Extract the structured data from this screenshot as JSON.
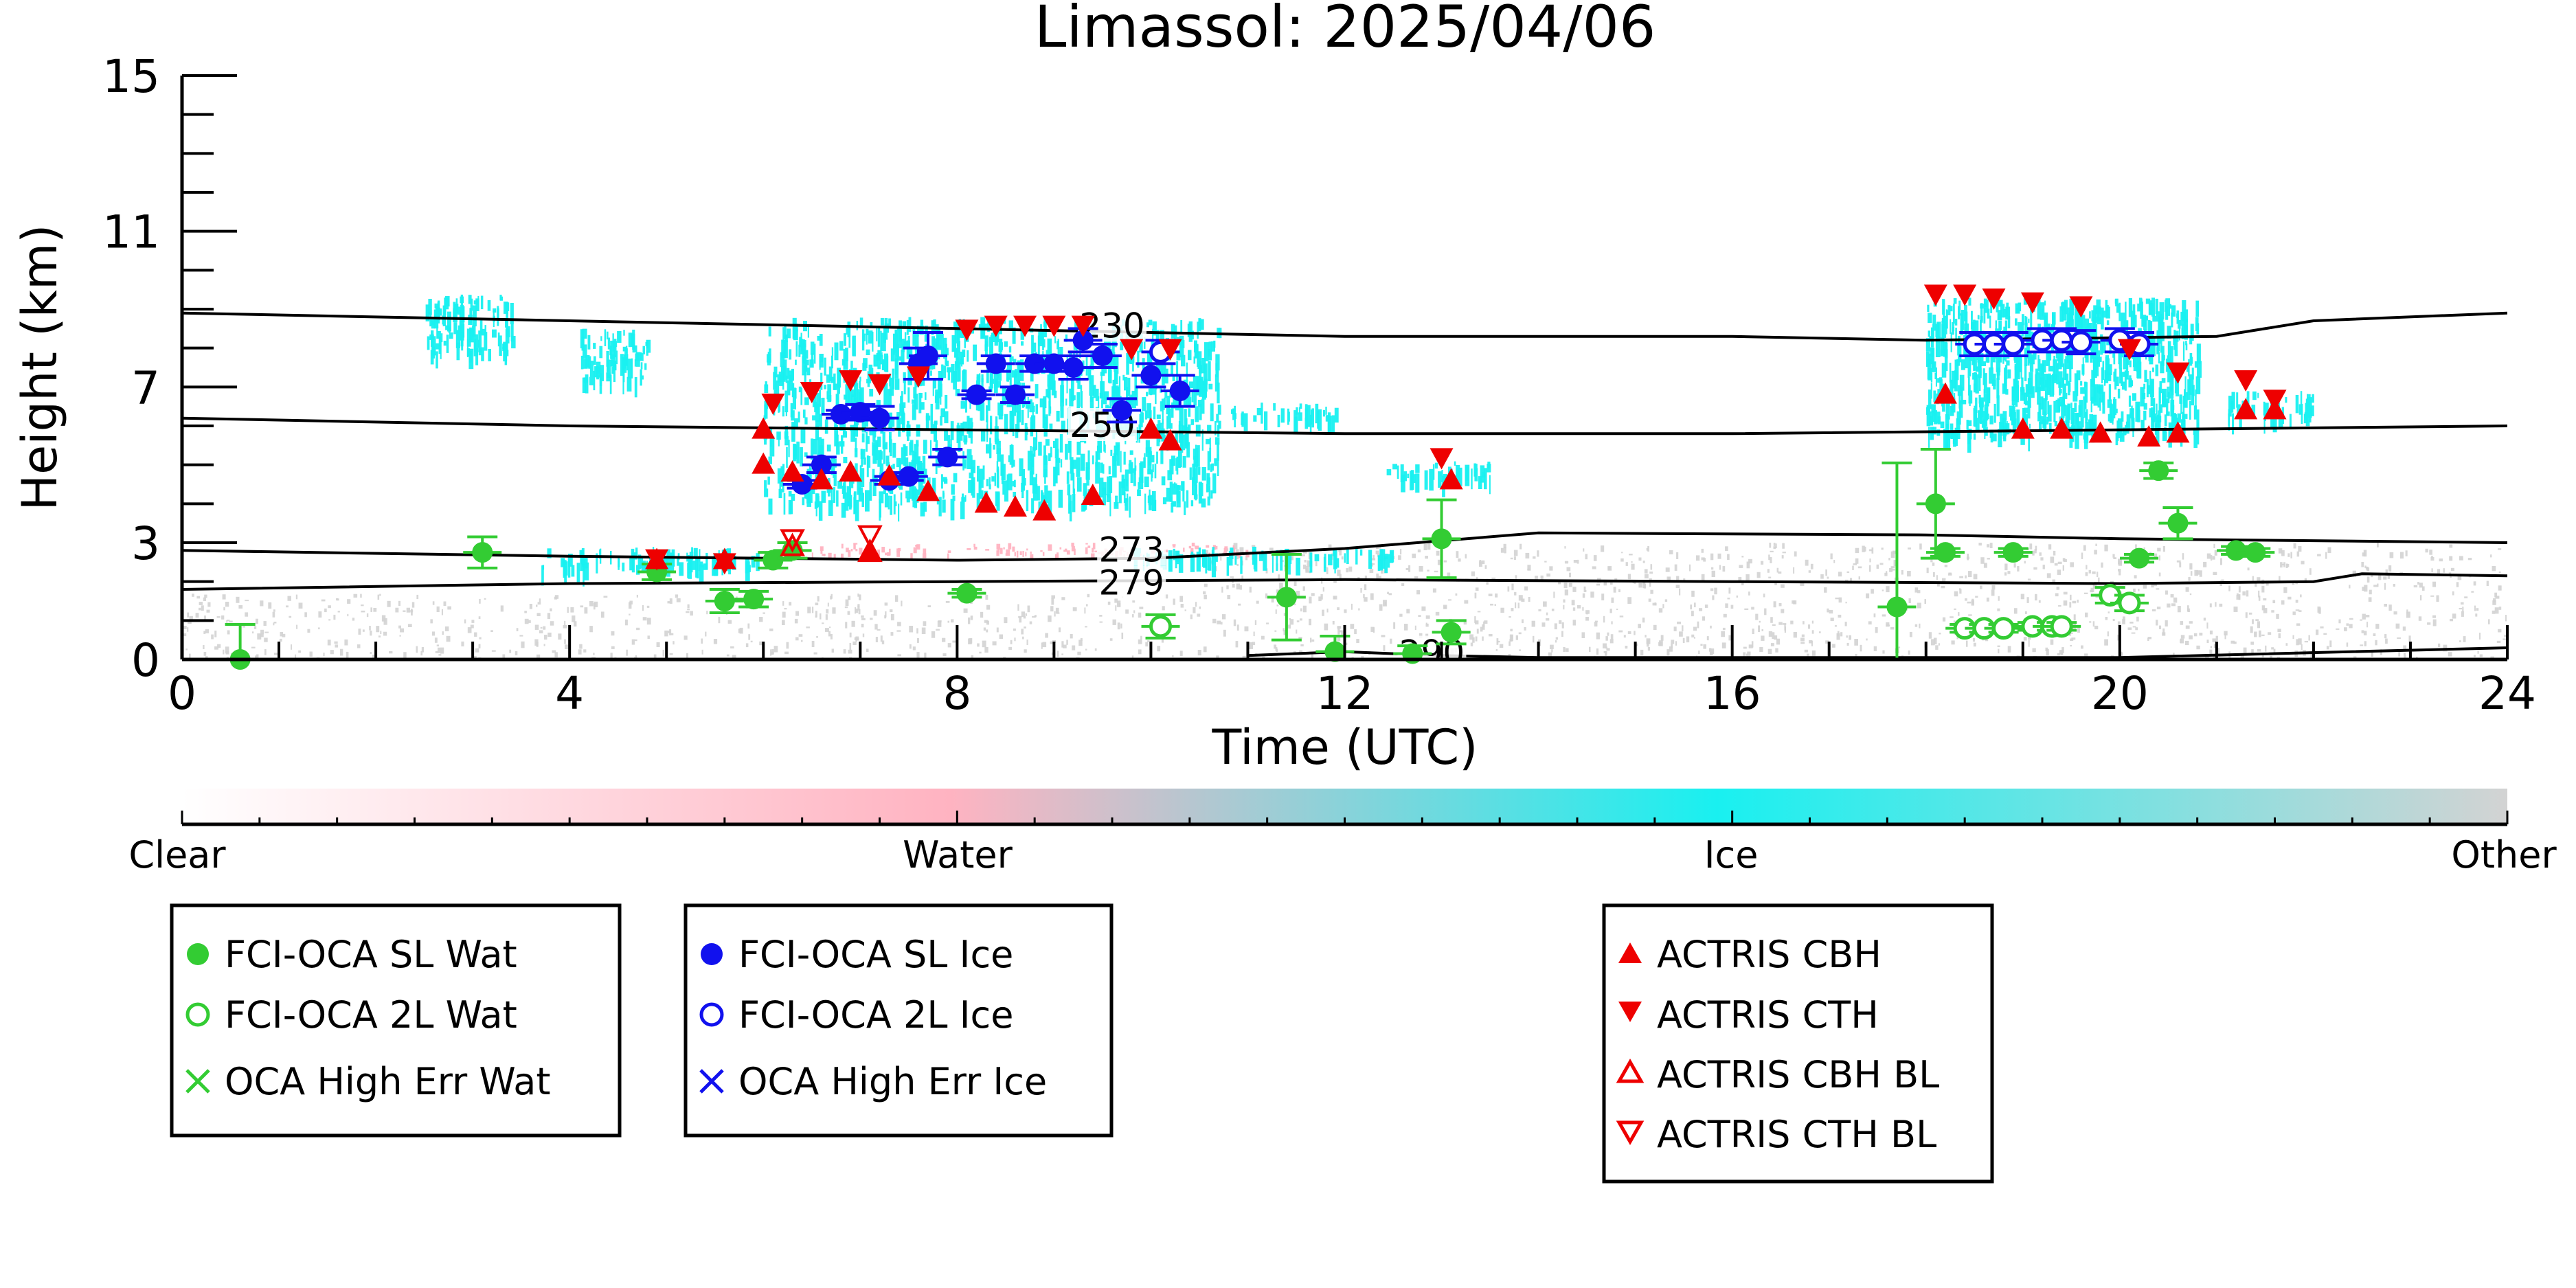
{
  "chart_data": {
    "type": "scatter",
    "title": "Limassol: 2025/04/06",
    "xlabel": "Time (UTC)",
    "ylabel": "Height (km)",
    "xlim": [
      0,
      24
    ],
    "ylim": [
      0,
      15
    ],
    "x_ticks": [
      0,
      4,
      8,
      12,
      16,
      20,
      24
    ],
    "y_ticks": [
      0,
      3,
      7,
      11,
      15
    ],
    "grid": false,
    "isotherms": [
      {
        "label": "230",
        "label_x": 9.6,
        "label_y": 8.55,
        "points": [
          [
            0,
            8.9
          ],
          [
            4,
            8.7
          ],
          [
            8,
            8.5
          ],
          [
            12,
            8.3
          ],
          [
            16,
            8.3
          ],
          [
            18,
            8.2
          ],
          [
            21,
            8.3
          ],
          [
            22,
            8.7
          ],
          [
            24,
            8.9
          ]
        ]
      },
      {
        "label": "250",
        "label_x": 9.5,
        "label_y": 6.0,
        "points": [
          [
            0,
            6.2
          ],
          [
            4,
            6.0
          ],
          [
            8,
            5.9
          ],
          [
            12,
            5.8
          ],
          [
            16,
            5.8
          ],
          [
            20,
            5.9
          ],
          [
            24,
            6.0
          ]
        ]
      },
      {
        "label": "273",
        "label_x": 9.8,
        "label_y": 2.8,
        "points": [
          [
            0,
            2.8
          ],
          [
            4,
            2.65
          ],
          [
            8,
            2.55
          ],
          [
            10,
            2.6
          ],
          [
            12,
            2.85
          ],
          [
            14,
            3.25
          ],
          [
            18,
            3.2
          ],
          [
            20,
            3.1
          ],
          [
            24,
            3.0
          ]
        ]
      },
      {
        "label": "279",
        "label_x": 9.8,
        "label_y": 1.95,
        "points": [
          [
            0,
            1.8
          ],
          [
            4,
            1.95
          ],
          [
            8,
            2.0
          ],
          [
            12,
            2.05
          ],
          [
            16,
            2.0
          ],
          [
            20,
            1.95
          ],
          [
            22,
            2.0
          ],
          [
            22.5,
            2.2
          ],
          [
            24,
            2.15
          ]
        ]
      },
      {
        "label": "290",
        "label_x": 12.9,
        "label_y": 0.15,
        "points": [
          [
            11,
            0.1
          ],
          [
            12,
            0.2
          ],
          [
            13,
            0.1
          ],
          [
            14,
            0.05
          ],
          [
            20,
            0.05
          ],
          [
            24,
            0.3
          ]
        ]
      }
    ],
    "series": [
      {
        "name": "FCI-OCA SL Wat",
        "marker": "filled-circle",
        "color": "#33cc33",
        "points": [
          [
            0.6,
            0.0,
            0.9
          ],
          [
            3.1,
            2.75,
            0.4
          ],
          [
            4.9,
            2.25,
            0.2
          ],
          [
            5.6,
            1.5,
            0.3
          ],
          [
            5.9,
            1.55,
            0.2
          ],
          [
            6.1,
            2.55,
            0.2
          ],
          [
            6.3,
            2.8,
            0.2
          ],
          [
            8.1,
            1.7,
            0.1
          ],
          [
            11.4,
            1.6,
            1.1
          ],
          [
            11.9,
            0.2,
            0.4
          ],
          [
            12.7,
            0.15,
            0.2
          ],
          [
            13.0,
            3.1,
            1.0
          ],
          [
            13.1,
            0.7,
            0.3
          ],
          [
            17.7,
            1.35,
            3.7
          ],
          [
            18.1,
            4.0,
            1.4
          ],
          [
            18.2,
            2.75,
            0.1
          ],
          [
            18.9,
            2.75,
            0.1
          ],
          [
            20.2,
            2.6,
            0.1
          ],
          [
            20.4,
            4.85,
            0.2
          ],
          [
            20.6,
            3.5,
            0.4
          ],
          [
            21.2,
            2.8,
            0.1
          ],
          [
            21.4,
            2.75,
            0.1
          ]
        ]
      },
      {
        "name": "FCI-OCA 2L Wat",
        "marker": "open-circle",
        "color": "#33cc33",
        "points": [
          [
            10.1,
            0.85,
            0.3
          ],
          [
            18.4,
            0.8,
            0.1
          ],
          [
            18.6,
            0.8,
            0.1
          ],
          [
            18.8,
            0.8,
            0.1
          ],
          [
            19.1,
            0.85,
            0.1
          ],
          [
            19.3,
            0.85,
            0.1
          ],
          [
            19.4,
            0.85,
            0.1
          ],
          [
            19.9,
            1.65,
            0.2
          ],
          [
            20.1,
            1.45,
            0.2
          ]
        ]
      },
      {
        "name": "OCA High Err Wat",
        "marker": "x",
        "color": "#33cc33",
        "points": []
      },
      {
        "name": "FCI-OCA SL Ice",
        "marker": "filled-circle",
        "color": "#1111ee",
        "points": [
          [
            6.4,
            4.5,
            0.1
          ],
          [
            6.6,
            5.0,
            0.2
          ],
          [
            6.8,
            6.3,
            0.1
          ],
          [
            7.0,
            6.35,
            0.2
          ],
          [
            7.2,
            6.2,
            0.3
          ],
          [
            7.3,
            4.6,
            0.1
          ],
          [
            7.5,
            4.7,
            0.1
          ],
          [
            7.6,
            7.6,
            0.4
          ],
          [
            7.7,
            7.8,
            0.6
          ],
          [
            7.9,
            5.2,
            0.2
          ],
          [
            8.2,
            6.8,
            0.1
          ],
          [
            8.4,
            7.6,
            0.2
          ],
          [
            8.6,
            6.8,
            0.2
          ],
          [
            8.8,
            7.6,
            0.2
          ],
          [
            9.0,
            7.6,
            0.2
          ],
          [
            9.2,
            7.5,
            0.3
          ],
          [
            9.3,
            8.2,
            0.3
          ],
          [
            9.5,
            7.8,
            0.3
          ],
          [
            9.7,
            6.4,
            0.3
          ],
          [
            10.0,
            7.3,
            0.3
          ],
          [
            10.3,
            6.9,
            0.4
          ]
        ]
      },
      {
        "name": "FCI-OCA 2L Ice",
        "marker": "open-circle",
        "color": "#1111ee",
        "points": [
          [
            10.1,
            7.9,
            0.3
          ],
          [
            18.5,
            8.1,
            0.3
          ],
          [
            18.7,
            8.1,
            0.3
          ],
          [
            18.9,
            8.1,
            0.3
          ],
          [
            19.2,
            8.2,
            0.3
          ],
          [
            19.4,
            8.2,
            0.3
          ],
          [
            19.6,
            8.15,
            0.3
          ],
          [
            20.0,
            8.2,
            0.3
          ],
          [
            20.2,
            8.1,
            0.3
          ]
        ]
      },
      {
        "name": "OCA High Err Ice",
        "marker": "x",
        "color": "#1111ee",
        "points": []
      },
      {
        "name": "ACTRIS CBH",
        "marker": "triangle-up",
        "color": "#ee0000",
        "points": [
          [
            4.9,
            2.55
          ],
          [
            5.6,
            2.55
          ],
          [
            6.0,
            5.9
          ],
          [
            6.0,
            5.0
          ],
          [
            6.3,
            4.8
          ],
          [
            6.6,
            4.6
          ],
          [
            6.9,
            4.8
          ],
          [
            7.1,
            2.75
          ],
          [
            7.3,
            4.7
          ],
          [
            7.7,
            4.3
          ],
          [
            8.3,
            4.0
          ],
          [
            8.6,
            3.9
          ],
          [
            8.9,
            3.8
          ],
          [
            9.4,
            4.2
          ],
          [
            10.0,
            5.9
          ],
          [
            10.2,
            5.6
          ],
          [
            13.1,
            4.6
          ],
          [
            18.2,
            6.8
          ],
          [
            19.0,
            5.9
          ],
          [
            19.4,
            5.9
          ],
          [
            19.8,
            5.8
          ],
          [
            20.3,
            5.7
          ],
          [
            20.6,
            5.8
          ],
          [
            21.3,
            6.4
          ],
          [
            21.6,
            6.4
          ]
        ]
      },
      {
        "name": "ACTRIS CTH",
        "marker": "triangle-down",
        "color": "#ee0000",
        "points": [
          [
            4.9,
            2.6
          ],
          [
            5.6,
            2.5
          ],
          [
            6.1,
            6.6
          ],
          [
            6.5,
            6.9
          ],
          [
            6.9,
            7.2
          ],
          [
            7.2,
            7.1
          ],
          [
            7.6,
            7.3
          ],
          [
            8.1,
            8.5
          ],
          [
            8.4,
            8.6
          ],
          [
            8.7,
            8.6
          ],
          [
            9.0,
            8.6
          ],
          [
            9.3,
            8.6
          ],
          [
            9.8,
            8.0
          ],
          [
            10.2,
            8.0
          ],
          [
            13.0,
            5.2
          ],
          [
            18.1,
            9.4
          ],
          [
            18.4,
            9.4
          ],
          [
            18.7,
            9.3
          ],
          [
            19.1,
            9.2
          ],
          [
            19.6,
            9.1
          ],
          [
            20.1,
            8.0
          ],
          [
            20.6,
            7.4
          ],
          [
            21.3,
            7.2
          ],
          [
            21.6,
            6.7
          ]
        ]
      },
      {
        "name": "ACTRIS CBH BL",
        "marker": "open-triangle-up",
        "color": "#ee0000",
        "points": [
          [
            6.3,
            2.9
          ],
          [
            7.1,
            2.75
          ]
        ]
      },
      {
        "name": "ACTRIS CTH BL",
        "marker": "open-triangle-down",
        "color": "#ee0000",
        "points": [
          [
            6.3,
            3.1
          ],
          [
            7.1,
            3.2
          ]
        ]
      }
    ],
    "cloud_regions": [
      {
        "phase": "Ice",
        "x": [
          2.5,
          3.4
        ],
        "y": [
          7.9,
          9.4
        ]
      },
      {
        "phase": "Ice",
        "x": [
          4.1,
          4.8
        ],
        "y": [
          7.2,
          8.5
        ]
      },
      {
        "phase": "Ice",
        "x": [
          6.0,
          10.7
        ],
        "y": [
          4.0,
          8.8
        ]
      },
      {
        "phase": "Ice",
        "x": [
          10.8,
          11.9
        ],
        "y": [
          6.2,
          6.6
        ]
      },
      {
        "phase": "Ice",
        "x": [
          12.4,
          13.5
        ],
        "y": [
          4.7,
          5.1
        ]
      },
      {
        "phase": "Ice",
        "x": [
          18.0,
          20.8
        ],
        "y": [
          5.8,
          9.3
        ]
      },
      {
        "phase": "Ice",
        "x": [
          21.1,
          22.0
        ],
        "y": [
          6.3,
          6.9
        ]
      },
      {
        "phase": "Ice",
        "x": [
          3.7,
          6.0
        ],
        "y": [
          2.4,
          2.9
        ]
      },
      {
        "phase": "Ice",
        "x": [
          9.8,
          12.5
        ],
        "y": [
          2.6,
          2.9
        ]
      },
      {
        "phase": "Water",
        "x": [
          6.5,
          11.0
        ],
        "y": [
          2.7,
          3.0
        ]
      },
      {
        "phase": "Other",
        "x": [
          0.0,
          24.0
        ],
        "y": [
          0.0,
          1.7
        ]
      },
      {
        "phase": "Other",
        "x": [
          10.5,
          24.0
        ],
        "y": [
          1.7,
          3.0
        ]
      }
    ],
    "colorbar": {
      "labels": [
        "Clear",
        "Water",
        "Ice",
        "Other"
      ],
      "colors": [
        "#ffffff",
        "#ffb3c1",
        "#19f0f0",
        "#d3d3d3"
      ]
    },
    "legend_placement": "below"
  }
}
